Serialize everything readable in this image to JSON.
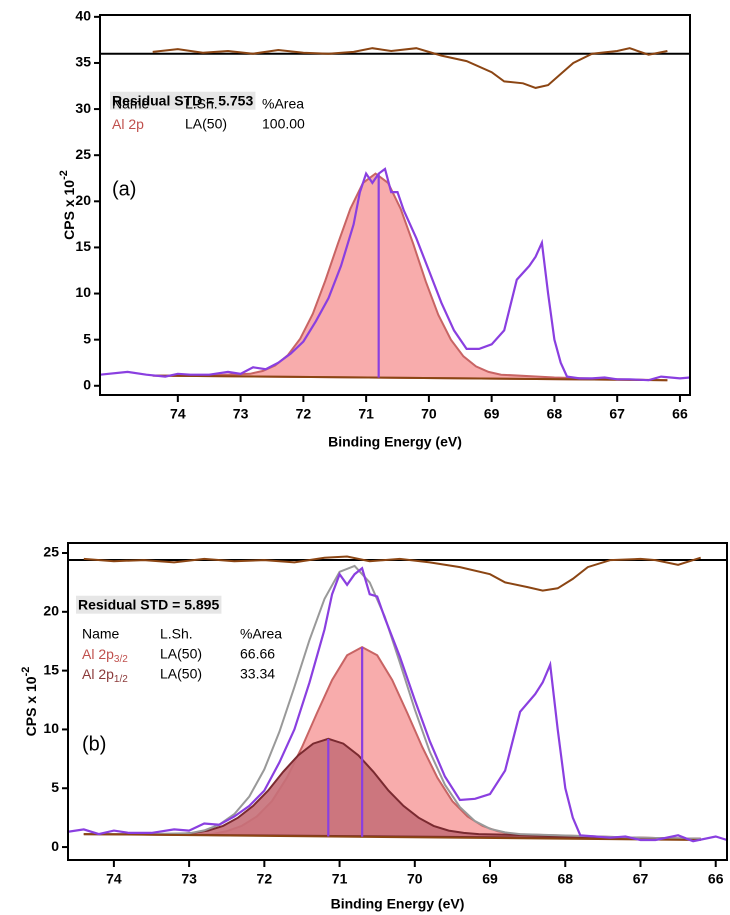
{
  "chart_data": [
    {
      "type": "line",
      "label": "(a)",
      "residual_std": "Residual STD = 5.753",
      "table": {
        "header": [
          "Name",
          "L.Sh.",
          "%Area"
        ],
        "rows": [
          {
            "name": "Al 2p",
            "shape": "LA(50)",
            "area": "100.00",
            "color": "#c0504d"
          }
        ]
      },
      "xlabel": "Binding Energy (eV)",
      "ylabel": "CPS x 10",
      "ylabel_sup": "-2",
      "xlim": [
        75.24,
        65.84
      ],
      "ylim": [
        -1,
        40.2
      ],
      "xticks": [
        74,
        73,
        72,
        71,
        70,
        69,
        68,
        67,
        66
      ],
      "yticks": [
        0,
        5,
        10,
        15,
        20,
        25,
        30,
        35,
        40
      ],
      "residual_level": 36,
      "series": [
        {
          "kind": "component",
          "color": "#f7a3a3",
          "stroke": "#c86464",
          "x": [
            74.4,
            73.6,
            72.85,
            72.65,
            72.45,
            72.25,
            72.05,
            71.85,
            71.65,
            71.45,
            71.25,
            71.05,
            70.85,
            70.65,
            70.45,
            70.25,
            70.05,
            69.85,
            69.65,
            69.45,
            69.25,
            69.05,
            68.85,
            68.0,
            67.0,
            66.2
          ],
          "y": [
            1.1,
            1.1,
            1.3,
            1.6,
            2.2,
            3.3,
            5.1,
            7.8,
            11.4,
            15.4,
            19.2,
            22.0,
            23.0,
            22.0,
            19.2,
            15.4,
            11.3,
            7.7,
            5.0,
            3.2,
            2.1,
            1.5,
            1.2,
            0.9,
            0.7,
            0.6
          ]
        },
        {
          "kind": "baseline",
          "color": "#8b4513",
          "x": [
            74.4,
            66.2
          ],
          "y": [
            1.1,
            0.6
          ]
        },
        {
          "kind": "data",
          "color": "#8a3fe0",
          "x": [
            75.24,
            74.8,
            74.5,
            74.2,
            74.0,
            73.8,
            73.5,
            73.2,
            73.0,
            72.8,
            72.6,
            72.4,
            72.2,
            72.0,
            71.8,
            71.6,
            71.4,
            71.2,
            71.1,
            71.0,
            70.9,
            70.8,
            70.7,
            70.6,
            70.5,
            70.4,
            70.2,
            70.0,
            69.8,
            69.6,
            69.4,
            69.2,
            69.0,
            68.8,
            68.6,
            68.4,
            68.3,
            68.2,
            68.1,
            68.0,
            67.9,
            67.8,
            67.6,
            67.4,
            67.2,
            67.0,
            66.8,
            66.5,
            66.3,
            66.0,
            65.84
          ],
          "y": [
            1.2,
            1.5,
            1.2,
            1.0,
            1.3,
            1.2,
            1.2,
            1.5,
            1.3,
            2.0,
            1.8,
            2.5,
            3.5,
            4.8,
            7,
            9.5,
            13,
            17.5,
            21,
            23,
            22,
            23,
            23.5,
            21,
            21,
            19,
            16,
            12.5,
            9,
            6,
            4,
            4,
            4.5,
            6,
            11.5,
            13,
            14,
            15.5,
            10,
            5,
            2.5,
            1,
            0.8,
            0.8,
            0.9,
            0.7,
            0.7,
            0.6,
            1.0,
            0.8,
            0.9
          ]
        },
        {
          "kind": "residual",
          "color": "#8b4513",
          "x": [
            74.4,
            74.0,
            73.6,
            73.2,
            72.8,
            72.4,
            72.0,
            71.6,
            71.2,
            70.9,
            70.6,
            70.2,
            69.8,
            69.4,
            69.0,
            68.8,
            68.5,
            68.3,
            68.1,
            67.9,
            67.7,
            67.4,
            67.0,
            66.8,
            66.5,
            66.2
          ],
          "y": [
            36.2,
            36.5,
            36.1,
            36.3,
            36.0,
            36.4,
            36.1,
            36.0,
            36.2,
            36.6,
            36.3,
            36.6,
            35.8,
            35.2,
            34.0,
            33.0,
            32.8,
            32.3,
            32.6,
            33.8,
            35.0,
            36.0,
            36.3,
            36.6,
            35.9,
            36.3
          ]
        }
      ],
      "peaks": [
        {
          "x": 70.8,
          "y": 23,
          "color": "#8a3fe0"
        }
      ]
    },
    {
      "type": "line",
      "label": "(b)",
      "residual_std": "Residual STD = 5.895",
      "table": {
        "header": [
          "Name",
          "L.Sh.",
          "%Area"
        ],
        "rows": [
          {
            "name": "Al 2p",
            "subscript": "3/2",
            "shape": "LA(50)",
            "area": "66.66",
            "color": "#c0504d"
          },
          {
            "name": "Al 2p",
            "subscript": "1/2",
            "shape": "LA(50)",
            "area": "33.34",
            "color": "#8b3a3a"
          }
        ]
      },
      "xlabel": "Binding Energy (eV)",
      "ylabel": "CPS x 10",
      "ylabel_sup": "-2",
      "xlim": [
        74.61,
        65.85
      ],
      "ylim": [
        -1.1,
        25.85
      ],
      "xticks": [
        74,
        73,
        72,
        71,
        70,
        69,
        68,
        67,
        66
      ],
      "yticks": [
        0,
        5,
        10,
        15,
        20,
        25
      ],
      "residual_level": 24.4,
      "series": [
        {
          "kind": "component",
          "color": "#f7a3a3",
          "stroke": "#c86464",
          "x": [
            74.4,
            72.7,
            72.5,
            72.3,
            72.1,
            71.9,
            71.7,
            71.5,
            71.3,
            71.1,
            70.9,
            70.7,
            70.5,
            70.3,
            70.1,
            69.9,
            69.7,
            69.5,
            69.3,
            69.1,
            68.9,
            68.7,
            67.0,
            66.2
          ],
          "y": [
            1.1,
            1.1,
            1.35,
            1.8,
            2.6,
            3.9,
            5.9,
            8.5,
            11.4,
            14.2,
            16.3,
            17,
            16.3,
            14.2,
            11.4,
            8.5,
            5.9,
            3.9,
            2.6,
            1.8,
            1.35,
            1.1,
            0.8,
            0.7
          ]
        },
        {
          "kind": "component",
          "color": "#c77079",
          "stroke": "#7a2a30",
          "x": [
            74.4,
            73.15,
            72.95,
            72.75,
            72.55,
            72.35,
            72.15,
            71.95,
            71.75,
            71.55,
            71.35,
            71.15,
            70.95,
            70.75,
            70.55,
            70.35,
            70.15,
            69.95,
            69.75,
            69.55,
            69.35,
            69.15,
            67.0,
            66.2
          ],
          "y": [
            1.1,
            1.1,
            1.2,
            1.4,
            1.8,
            2.5,
            3.5,
            4.8,
            6.4,
            7.8,
            8.8,
            9.2,
            8.8,
            7.8,
            6.4,
            4.8,
            3.5,
            2.5,
            1.8,
            1.4,
            1.2,
            1.1,
            0.8,
            0.7
          ]
        },
        {
          "kind": "envelope",
          "color": "#999999",
          "x": [
            74.4,
            73.6,
            73.0,
            72.8,
            72.6,
            72.4,
            72.2,
            72.0,
            71.8,
            71.6,
            71.4,
            71.2,
            71.0,
            70.8,
            70.6,
            70.4,
            70.2,
            70.0,
            69.8,
            69.6,
            69.4,
            69.2,
            69.0,
            68.8,
            68.6,
            67.0,
            66.2
          ],
          "y": [
            1.1,
            1.1,
            1.17,
            1.42,
            1.9,
            2.8,
            4.3,
            6.6,
            9.8,
            13.6,
            17.6,
            21.1,
            23.4,
            23.9,
            22.5,
            19.6,
            15.7,
            11.7,
            8.1,
            5.3,
            3.4,
            2.2,
            1.55,
            1.25,
            1.1,
            0.8,
            0.7
          ]
        },
        {
          "kind": "baseline",
          "color": "#8b4513",
          "x": [
            74.4,
            66.2
          ],
          "y": [
            1.1,
            0.6
          ]
        },
        {
          "kind": "data",
          "color": "#8a3fe0",
          "x": [
            74.61,
            74.4,
            74.2,
            74.0,
            73.8,
            73.5,
            73.2,
            73.0,
            72.8,
            72.6,
            72.4,
            72.2,
            72.0,
            71.8,
            71.6,
            71.4,
            71.2,
            71.1,
            71.0,
            70.9,
            70.8,
            70.7,
            70.6,
            70.5,
            70.4,
            70.2,
            70.0,
            69.8,
            69.6,
            69.4,
            69.2,
            69.0,
            68.8,
            68.6,
            68.4,
            68.3,
            68.2,
            68.1,
            68.0,
            67.9,
            67.8,
            67.6,
            67.4,
            67.2,
            67.0,
            66.8,
            66.5,
            66.3,
            66.0,
            65.85
          ],
          "y": [
            1.3,
            1.5,
            1.1,
            1.4,
            1.2,
            1.2,
            1.5,
            1.4,
            2.0,
            1.9,
            2.6,
            3.5,
            4.8,
            7.2,
            10,
            14,
            18.5,
            21.5,
            23.2,
            22.3,
            23.2,
            23.7,
            21.5,
            21.3,
            19.5,
            16.2,
            12.5,
            9,
            6,
            4,
            4.1,
            4.5,
            6.5,
            11.5,
            13,
            14,
            15.5,
            10,
            5,
            2.5,
            1.0,
            0.9,
            0.8,
            0.9,
            0.6,
            0.6,
            1.0,
            0.5,
            0.9,
            0.6
          ]
        },
        {
          "kind": "residual",
          "color": "#8b4513",
          "x": [
            74.4,
            74.0,
            73.6,
            73.2,
            72.8,
            72.4,
            72.0,
            71.6,
            71.2,
            70.9,
            70.6,
            70.2,
            69.8,
            69.4,
            69.0,
            68.8,
            68.5,
            68.3,
            68.1,
            67.9,
            67.7,
            67.4,
            67.0,
            66.8,
            66.5,
            66.2
          ],
          "y": [
            24.5,
            24.3,
            24.4,
            24.2,
            24.5,
            24.3,
            24.4,
            24.2,
            24.6,
            24.7,
            24.3,
            24.5,
            24.2,
            23.8,
            23.2,
            22.5,
            22.1,
            21.8,
            22.0,
            22.8,
            23.8,
            24.4,
            24.5,
            24.4,
            24.0,
            24.6
          ]
        }
      ],
      "peaks": [
        {
          "x": 70.7,
          "y": 17,
          "color": "#8a3fe0"
        },
        {
          "x": 71.15,
          "y": 9.2,
          "color": "#8a3fe0"
        }
      ]
    }
  ]
}
